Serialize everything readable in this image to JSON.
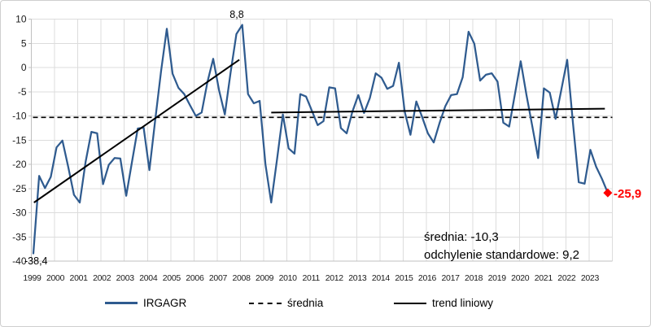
{
  "chart_data": {
    "type": "line",
    "title": "",
    "frequency": "quarterly",
    "series_name": "IRGAGR",
    "x_tick_labels": [
      "1999",
      "2000",
      "2001",
      "2002",
      "2003",
      "2004",
      "2005",
      "2006",
      "2007",
      "2008",
      "2009",
      "2010",
      "2011",
      "2012",
      "2013",
      "2014",
      "2015",
      "2016",
      "2017",
      "2018",
      "2019",
      "2020",
      "2021",
      "2022",
      "2023"
    ],
    "values_by_year": {
      "1999": [
        -38.4,
        -22.4,
        -24.9,
        -22.6
      ],
      "2000": [
        -16.5,
        -15.1,
        -20.5,
        -26.3
      ],
      "2001": [
        -27.9,
        -19.5,
        -13.3,
        -13.6
      ],
      "2002": [
        -24.1,
        -20.1,
        -18.7,
        -18.8
      ],
      "2003": [
        -26.5,
        -19.5,
        -12.6,
        -12.4
      ],
      "2004": [
        -21.2,
        -10.9,
        -0.8,
        8.0
      ],
      "2005": [
        -1.3,
        -4.2,
        -5.5,
        -7.8
      ],
      "2006": [
        -10.0,
        -9.3,
        -3.0,
        1.8
      ],
      "2007": [
        -4.7,
        -9.7,
        -1.0,
        6.9
      ],
      "2008": [
        8.8,
        -5.5,
        -7.4,
        -6.9
      ],
      "2009": [
        -20.0,
        -27.9,
        -18.9,
        -9.7
      ],
      "2010": [
        -16.7,
        -17.8,
        -5.5,
        -6.0
      ],
      "2011": [
        -8.9,
        -11.9,
        -11.1,
        -4.1
      ],
      "2012": [
        -4.3,
        -12.5,
        -13.6,
        -9.1
      ],
      "2013": [
        -5.7,
        -9.4,
        -6.3,
        -1.2
      ],
      "2014": [
        -2.1,
        -4.4,
        -3.8,
        1.0
      ],
      "2015": [
        -9.1,
        -13.9,
        -7.0,
        -10.2
      ],
      "2016": [
        -13.6,
        -15.5,
        -11.5,
        -8.0
      ],
      "2017": [
        -5.7,
        -5.5,
        -2.0,
        7.4
      ],
      "2018": [
        4.9,
        -2.7,
        -1.5,
        -1.2
      ],
      "2019": [
        -2.9,
        -11.4,
        -12.2,
        -5.5
      ],
      "2020": [
        1.3,
        -5.7,
        -12.2,
        -18.7
      ],
      "2021": [
        -4.3,
        -5.2,
        -10.6,
        -4.6
      ],
      "2022": [
        1.6,
        -11.5,
        -23.7,
        -24.0
      ],
      "2023": [
        -17.0,
        -20.5,
        -23.0,
        -25.9
      ]
    },
    "yticks": [
      10,
      5,
      0,
      -5,
      -10,
      -15,
      -20,
      -25,
      -30,
      -35,
      -40
    ],
    "ylim": [
      -40,
      10
    ],
    "mean_line_value": -10.3,
    "trend_segments": [
      {
        "from_quarter": 0.1,
        "from_value": -27.9,
        "to_quarter": 35.5,
        "to_value": 1.6
      },
      {
        "from_quarter": 41.0,
        "from_value": -9.3,
        "to_quarter": 98.5,
        "to_value": -8.5
      }
    ],
    "end_marker": {
      "shape": "diamond",
      "value": -25.9
    },
    "colors": {
      "series": "#2f5b8f",
      "grid": "#dcdcdc",
      "axis": "#c0c0c0",
      "text": "#1a1a1a",
      "mean_line": "#000000",
      "trend_line": "#000000",
      "end_marker": "#ff0000"
    },
    "grid": true,
    "legend_position": "bottom"
  },
  "annotations": {
    "peak_label": "8,8",
    "start_label": "-38,4",
    "end_label": "-25,9",
    "stats_line1": "średnia: -10,3",
    "stats_line2": "odchylenie standardowe: 9,2"
  },
  "legend": {
    "items": [
      {
        "label": "IRGAGR",
        "swatch": "solid-blue-line"
      },
      {
        "label": "średnia",
        "swatch": "dashed-black-line"
      },
      {
        "label": "trend liniowy",
        "swatch": "solid-black-line"
      }
    ]
  }
}
